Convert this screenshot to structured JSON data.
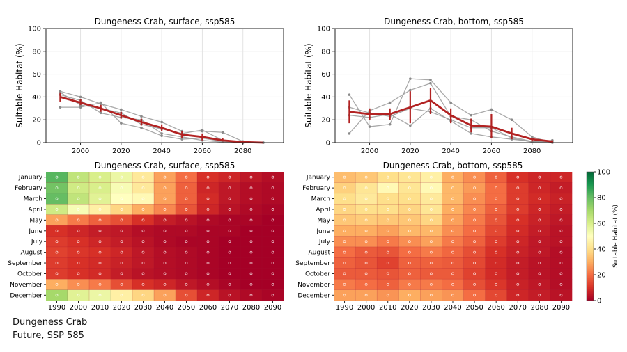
{
  "caption": {
    "line1": "Dungeness Crab",
    "line2": "Future, SSP 585"
  },
  "colorbar": {
    "label": "Suitable Habitat (%)",
    "ticks": [
      0,
      20,
      40,
      60,
      80,
      100
    ],
    "colors": {
      "low": "#c8203c",
      "mid": "#fefebe",
      "high": "#0f7a3a"
    }
  },
  "chart_data": [
    {
      "type": "line",
      "title": "Dungeness Crab, surface, ssp585",
      "ylabel": "Suitable Habitat (%)",
      "ylim": [
        0,
        100
      ],
      "yticks": [
        0,
        20,
        40,
        60,
        80,
        100
      ],
      "xlim": [
        1983,
        2100
      ],
      "xticks": [
        2000,
        2020,
        2040,
        2060,
        2080
      ],
      "x": [
        1990,
        2000,
        2010,
        2020,
        2030,
        2040,
        2050,
        2060,
        2070,
        2080,
        2090
      ],
      "mean": {
        "color": "#b22222",
        "values": [
          40,
          35,
          30,
          24,
          18,
          13,
          7,
          5,
          2,
          0.5,
          0
        ],
        "lower": [
          36,
          33,
          27,
          21,
          15,
          10,
          4,
          2,
          1,
          0,
          0
        ],
        "upper": [
          44,
          38,
          33,
          27,
          21,
          16,
          10,
          8,
          4,
          1,
          0
        ]
      },
      "members": [
        [
          45,
          40,
          34,
          29,
          23,
          18,
          10,
          10,
          9,
          1,
          0
        ],
        [
          44,
          33,
          30,
          26,
          16,
          12,
          8,
          11,
          2,
          0,
          0
        ],
        [
          31,
          31,
          35,
          17,
          13,
          6,
          3,
          4,
          1,
          0,
          0
        ],
        [
          42,
          37,
          26,
          22,
          20,
          8,
          5,
          2,
          0.5,
          0,
          0
        ]
      ]
    },
    {
      "type": "line",
      "title": "Dungeness Crab, bottom, ssp585",
      "ylabel": "Suitable Habitat (%)",
      "ylim": [
        0,
        100
      ],
      "yticks": [
        0,
        20,
        40,
        60,
        80,
        100
      ],
      "xlim": [
        1983,
        2100
      ],
      "xticks": [
        2000,
        2020,
        2040,
        2060,
        2080
      ],
      "x": [
        1990,
        2000,
        2010,
        2020,
        2030,
        2040,
        2050,
        2060,
        2070,
        2080,
        2090
      ],
      "mean": {
        "color": "#b22222",
        "values": [
          27,
          25,
          25,
          31,
          37,
          24,
          15,
          14,
          8,
          3,
          1
        ],
        "lower": [
          17,
          20,
          20,
          17,
          25,
          17,
          9,
          4,
          3,
          1,
          0
        ],
        "upper": [
          37,
          30,
          30,
          45,
          48,
          30,
          21,
          25,
          13,
          4,
          2
        ]
      },
      "members": [
        [
          42,
          14,
          16,
          56,
          55,
          35,
          24,
          29,
          20,
          5,
          0
        ],
        [
          8,
          28,
          35,
          46,
          52,
          23,
          20,
          10,
          5,
          1,
          0
        ],
        [
          24,
          22,
          25,
          15,
          30,
          19,
          8,
          5,
          3,
          1,
          1
        ],
        [
          31,
          26,
          23,
          30,
          27,
          20,
          13,
          13,
          4,
          0.5,
          2
        ]
      ]
    },
    {
      "type": "heatmap",
      "title": "Dungeness Crab, surface, ssp585",
      "rows": [
        "January",
        "February",
        "March",
        "April",
        "May",
        "June",
        "July",
        "August",
        "September",
        "October",
        "November",
        "December"
      ],
      "columns": [
        "1990",
        "2000",
        "2010",
        "2020",
        "2030",
        "2040",
        "2050",
        "2060",
        "2070",
        "2080",
        "2090"
      ],
      "values": [
        [
          82,
          65,
          60,
          55,
          43,
          28,
          20,
          10,
          8,
          5,
          3
        ],
        [
          78,
          62,
          60,
          52,
          43,
          28,
          18,
          8,
          5,
          3,
          2
        ],
        [
          80,
          65,
          58,
          50,
          48,
          28,
          18,
          9,
          5,
          3,
          2
        ],
        [
          62,
          52,
          45,
          38,
          30,
          24,
          16,
          8,
          4,
          2,
          1
        ],
        [
          28,
          22,
          18,
          15,
          10,
          6,
          4,
          2,
          1,
          1,
          0
        ],
        [
          10,
          8,
          6,
          5,
          3,
          2,
          2,
          1,
          1,
          0,
          0
        ],
        [
          12,
          10,
          8,
          6,
          4,
          2,
          1,
          1,
          0,
          0,
          0
        ],
        [
          13,
          11,
          10,
          8,
          5,
          3,
          2,
          1,
          0,
          0,
          0
        ],
        [
          12,
          10,
          9,
          7,
          5,
          3,
          2,
          1,
          0,
          0,
          0
        ],
        [
          12,
          10,
          9,
          6,
          4,
          3,
          2,
          1,
          0,
          0,
          0
        ],
        [
          30,
          25,
          22,
          15,
          10,
          8,
          5,
          3,
          1,
          0,
          0
        ],
        [
          70,
          58,
          55,
          45,
          38,
          28,
          15,
          8,
          4,
          2,
          1
        ]
      ]
    },
    {
      "type": "heatmap",
      "title": "Dungeness Crab, bottom, ssp585",
      "rows": [
        "January",
        "February",
        "March",
        "April",
        "May",
        "June",
        "July",
        "August",
        "September",
        "October",
        "November",
        "December"
      ],
      "columns": [
        "1990",
        "2000",
        "2010",
        "2020",
        "2030",
        "2040",
        "2050",
        "2060",
        "2070",
        "2080",
        "2090"
      ],
      "values": [
        [
          33,
          35,
          40,
          42,
          45,
          30,
          25,
          18,
          10,
          8,
          8
        ],
        [
          37,
          42,
          48,
          42,
          48,
          32,
          27,
          20,
          12,
          8,
          6
        ],
        [
          40,
          43,
          40,
          40,
          43,
          32,
          25,
          20,
          12,
          9,
          7
        ],
        [
          38,
          40,
          40,
          38,
          42,
          30,
          24,
          18,
          12,
          8,
          6
        ],
        [
          35,
          36,
          35,
          35,
          38,
          28,
          22,
          16,
          10,
          7,
          5
        ],
        [
          30,
          30,
          28,
          32,
          32,
          25,
          20,
          14,
          9,
          6,
          4
        ],
        [
          25,
          25,
          22,
          25,
          28,
          22,
          18,
          12,
          8,
          5,
          4
        ],
        [
          20,
          17,
          16,
          20,
          22,
          19,
          15,
          10,
          7,
          5,
          3
        ],
        [
          18,
          16,
          13,
          18,
          18,
          17,
          14,
          9,
          6,
          4,
          3
        ],
        [
          17,
          17,
          16,
          18,
          17,
          17,
          13,
          9,
          6,
          4,
          3
        ],
        [
          22,
          20,
          18,
          22,
          22,
          20,
          15,
          11,
          7,
          5,
          3
        ],
        [
          28,
          28,
          26,
          30,
          28,
          26,
          20,
          14,
          8,
          6,
          4
        ]
      ]
    }
  ]
}
